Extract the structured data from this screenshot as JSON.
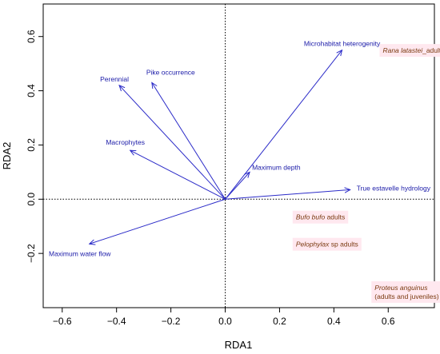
{
  "chart_data": {
    "type": "scatter",
    "xlabel": "RDA1",
    "ylabel": "RDA2",
    "xlim": [
      -0.67,
      0.77
    ],
    "ylim": [
      -0.4,
      0.72
    ],
    "xticks": [
      -0.6,
      -0.4,
      -0.2,
      0.0,
      0.2,
      0.4,
      0.6
    ],
    "xtick_labels": [
      "−0.6",
      "−0.4",
      "−0.2",
      "0.0",
      "0.2",
      "0.4",
      "0.6"
    ],
    "yticks": [
      -0.2,
      0.0,
      0.2,
      0.4,
      0.6
    ],
    "ytick_labels": [
      "−0.2",
      "0.0",
      "0.2",
      "0.4",
      "0.6"
    ],
    "reference_lines": {
      "x": 0,
      "y": 0
    },
    "arrow_color": "#2b2bc8",
    "label_color": "#1a1aa8",
    "species_color": "#7a3a10",
    "highlight_color": "#ffe8ef",
    "vectors": [
      {
        "name": "Microhabitat heterogenity",
        "x": 0.43,
        "y": 0.55
      },
      {
        "name": "Pike occurrence",
        "x": -0.27,
        "y": 0.43
      },
      {
        "name": "Perennial",
        "x": -0.39,
        "y": 0.42
      },
      {
        "name": "Macrophytes",
        "x": -0.35,
        "y": 0.18
      },
      {
        "name": "Maximum depth",
        "x": 0.09,
        "y": 0.1
      },
      {
        "name": "True estavelle hydrology",
        "x": 0.46,
        "y": 0.035
      },
      {
        "name": "Maximum water flow",
        "x": -0.5,
        "y": -0.165
      }
    ],
    "species": [
      {
        "italic": "Rana latastei",
        "rest": "_adults",
        "x": 0.58,
        "y": 0.54
      },
      {
        "italic": "Bufo bufo",
        "rest": " adults",
        "x": 0.26,
        "y": -0.075
      },
      {
        "italic": "Pelophylax",
        "rest": " sp adults",
        "x": 0.26,
        "y": -0.175
      },
      {
        "italic": "Proteus anguinus",
        "rest": "",
        "line2": "(adults and juveniles)",
        "x": 0.55,
        "y": -0.335
      }
    ]
  }
}
